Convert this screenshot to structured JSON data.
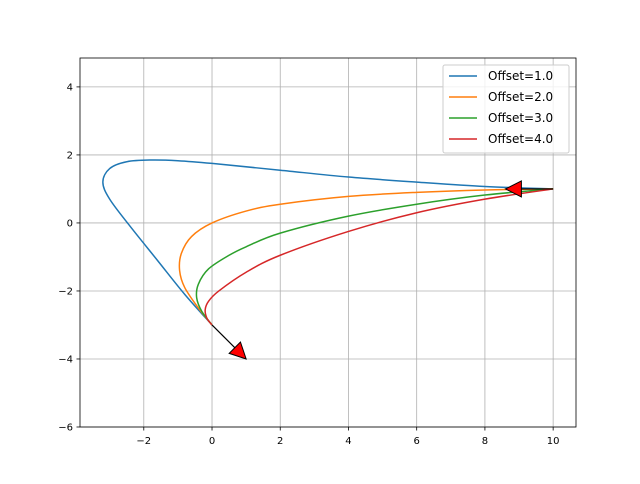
{
  "chart_data": {
    "type": "line",
    "title": "",
    "xlabel": "",
    "ylabel": "",
    "xlim": [
      -3.87,
      10.67
    ],
    "ylim": [
      -6,
      4.85
    ],
    "xticks": [
      -2,
      0,
      2,
      4,
      6,
      8,
      10
    ],
    "yticks": [
      -6,
      -4,
      -2,
      0,
      2,
      4
    ],
    "grid": true,
    "legend_placement": "upper-right",
    "series": [
      {
        "name": "Offset=1.0",
        "color": "#1f77b4",
        "points": [
          [
            0,
            -3
          ],
          [
            -0.8,
            -2.1
          ],
          [
            -1.6,
            -1.1
          ],
          [
            -2.4,
            -0.1
          ],
          [
            -3.0,
            0.7
          ],
          [
            -3.2,
            1.2
          ],
          [
            -3.0,
            1.6
          ],
          [
            -2.5,
            1.8
          ],
          [
            -1.8,
            1.85
          ],
          [
            -1,
            1.83
          ],
          [
            0,
            1.75
          ],
          [
            2,
            1.55
          ],
          [
            4,
            1.35
          ],
          [
            6,
            1.2
          ],
          [
            8,
            1.07
          ],
          [
            10,
            1
          ]
        ]
      },
      {
        "name": "Offset=2.0",
        "color": "#ff7f0e",
        "points": [
          [
            0,
            -3
          ],
          [
            -0.4,
            -2.5
          ],
          [
            -0.8,
            -1.9
          ],
          [
            -0.95,
            -1.4
          ],
          [
            -0.9,
            -0.9
          ],
          [
            -0.6,
            -0.4
          ],
          [
            0,
            0
          ],
          [
            1,
            0.35
          ],
          [
            2,
            0.55
          ],
          [
            4,
            0.78
          ],
          [
            6,
            0.9
          ],
          [
            8,
            0.97
          ],
          [
            10,
            1
          ]
        ]
      },
      {
        "name": "Offset=3.0",
        "color": "#2ca02c",
        "points": [
          [
            0,
            -3
          ],
          [
            -0.3,
            -2.6
          ],
          [
            -0.45,
            -2.2
          ],
          [
            -0.4,
            -1.8
          ],
          [
            -0.1,
            -1.35
          ],
          [
            0.5,
            -0.95
          ],
          [
            1,
            -0.7
          ],
          [
            2,
            -0.3
          ],
          [
            4,
            0.2
          ],
          [
            6,
            0.55
          ],
          [
            8,
            0.82
          ],
          [
            10,
            1
          ]
        ]
      },
      {
        "name": "Offset=4.0",
        "color": "#d62728",
        "points": [
          [
            0,
            -3
          ],
          [
            -0.15,
            -2.8
          ],
          [
            -0.2,
            -2.55
          ],
          [
            -0.1,
            -2.3
          ],
          [
            0.2,
            -2.0
          ],
          [
            1,
            -1.45
          ],
          [
            2,
            -0.95
          ],
          [
            4,
            -0.25
          ],
          [
            6,
            0.3
          ],
          [
            8,
            0.7
          ],
          [
            10,
            1
          ]
        ]
      }
    ],
    "arrows": [
      {
        "from": [
          0,
          -3
        ],
        "to": [
          1,
          -4
        ],
        "head_color": "#ff0000"
      },
      {
        "from": [
          10,
          1
        ],
        "to": [
          8.6,
          1
        ],
        "head_color": "#ff0000"
      }
    ]
  }
}
